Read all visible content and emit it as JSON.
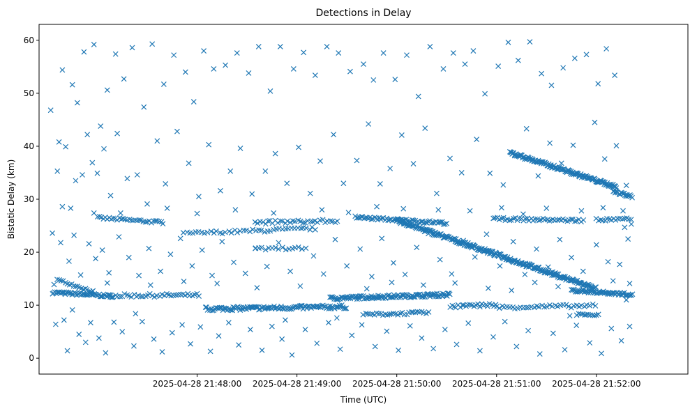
{
  "chart_data": {
    "type": "scatter",
    "title": "Detections in Delay",
    "xlabel": "Time (UTC)",
    "ylabel": "Bistatic Delay (km)",
    "marker": "x",
    "color": "#1f77b4",
    "x_unit": "seconds since 2025-04-28 21:47:00 UTC",
    "xlim": [
      -35,
      355
    ],
    "ylim": [
      -3,
      63
    ],
    "x_ticks": [
      {
        "value": 60,
        "label": "2025-04-28 21:48:00"
      },
      {
        "value": 120,
        "label": "2025-04-28 21:49:00"
      },
      {
        "value": 180,
        "label": "2025-04-28 21:50:00"
      },
      {
        "value": 240,
        "label": "2025-04-28 21:51:00"
      },
      {
        "value": 300,
        "label": "2025-04-28 21:52:00"
      }
    ],
    "y_ticks": [
      0,
      10,
      20,
      30,
      40,
      50,
      60
    ],
    "x_range_seconds": [
      -27,
      347
    ],
    "noise_points": [
      [
        -28,
        46.8
      ],
      [
        -23,
        40.8
      ],
      [
        -21,
        54.4
      ],
      [
        -15,
        51.6
      ],
      [
        -12,
        48.2
      ],
      [
        -8,
        57.8
      ],
      [
        -2,
        59.2
      ],
      [
        2,
        43.8
      ],
      [
        6,
        50.6
      ],
      [
        11,
        57.4
      ],
      [
        16,
        52.7
      ],
      [
        21,
        58.6
      ],
      [
        28,
        47.4
      ],
      [
        33,
        59.3
      ],
      [
        40,
        51.7
      ],
      [
        46,
        57.2
      ],
      [
        53,
        54.0
      ],
      [
        58,
        48.4
      ],
      [
        64,
        58.0
      ],
      [
        70,
        54.6
      ],
      [
        77,
        55.3
      ],
      [
        84,
        57.6
      ],
      [
        91,
        53.8
      ],
      [
        97,
        58.8
      ],
      [
        104,
        50.4
      ],
      [
        110,
        58.8
      ],
      [
        118,
        54.6
      ],
      [
        124,
        57.7
      ],
      [
        131,
        53.4
      ],
      [
        138,
        58.8
      ],
      [
        145,
        57.6
      ],
      [
        152,
        54.1
      ],
      [
        160,
        55.5
      ],
      [
        166,
        52.5
      ],
      [
        172,
        57.6
      ],
      [
        179,
        52.6
      ],
      [
        186,
        57.2
      ],
      [
        193,
        49.4
      ],
      [
        200,
        58.8
      ],
      [
        208,
        54.6
      ],
      [
        214,
        57.6
      ],
      [
        221,
        55.5
      ],
      [
        226,
        58.0
      ],
      [
        233,
        49.9
      ],
      [
        241,
        55.1
      ],
      [
        247,
        59.6
      ],
      [
        253,
        56.2
      ],
      [
        260,
        59.7
      ],
      [
        267,
        53.7
      ],
      [
        273,
        51.5
      ],
      [
        280,
        54.8
      ],
      [
        287,
        56.6
      ],
      [
        294,
        57.3
      ],
      [
        301,
        51.8
      ],
      [
        306,
        58.4
      ],
      [
        311,
        53.4
      ],
      [
        -24,
        35.3
      ],
      [
        -19,
        39.9
      ],
      [
        -16,
        28.3
      ],
      [
        -13,
        33.5
      ],
      [
        -9,
        34.6
      ],
      [
        -6,
        42.2
      ],
      [
        -3,
        36.9
      ],
      [
        0,
        34.9
      ],
      [
        4,
        39.5
      ],
      [
        8,
        30.7
      ],
      [
        12,
        42.4
      ],
      [
        18,
        33.9
      ],
      [
        24,
        34.6
      ],
      [
        30,
        29.1
      ],
      [
        36,
        41.0
      ],
      [
        41,
        32.9
      ],
      [
        48,
        42.8
      ],
      [
        55,
        36.8
      ],
      [
        61,
        30.5
      ],
      [
        67,
        40.3
      ],
      [
        74,
        31.6
      ],
      [
        80,
        35.3
      ],
      [
        86,
        39.6
      ],
      [
        93,
        31.0
      ],
      [
        101,
        35.3
      ],
      [
        107,
        38.6
      ],
      [
        114,
        33.0
      ],
      [
        121,
        39.8
      ],
      [
        128,
        31.1
      ],
      [
        134,
        37.2
      ],
      [
        142,
        42.2
      ],
      [
        148,
        33.0
      ],
      [
        156,
        37.3
      ],
      [
        163,
        44.2
      ],
      [
        170,
        32.9
      ],
      [
        176,
        35.8
      ],
      [
        183,
        42.1
      ],
      [
        190,
        36.7
      ],
      [
        197,
        43.4
      ],
      [
        204,
        31.1
      ],
      [
        212,
        37.7
      ],
      [
        219,
        35.0
      ],
      [
        228,
        41.3
      ],
      [
        236,
        34.9
      ],
      [
        244,
        32.7
      ],
      [
        251,
        38.2
      ],
      [
        258,
        43.3
      ],
      [
        265,
        34.4
      ],
      [
        272,
        40.6
      ],
      [
        279,
        36.8
      ],
      [
        286,
        40.2
      ],
      [
        293,
        34.3
      ],
      [
        299,
        44.5
      ],
      [
        305,
        37.6
      ],
      [
        312,
        40.1
      ],
      [
        318,
        32.6
      ],
      [
        -27,
        23.6
      ],
      [
        -22,
        21.8
      ],
      [
        -17,
        18.3
      ],
      [
        -14,
        23.2
      ],
      [
        -10,
        15.7
      ],
      [
        -5,
        21.6
      ],
      [
        -1,
        18.8
      ],
      [
        3,
        20.4
      ],
      [
        7,
        16.1
      ],
      [
        13,
        22.9
      ],
      [
        19,
        19.0
      ],
      [
        25,
        15.6
      ],
      [
        31,
        20.7
      ],
      [
        38,
        16.4
      ],
      [
        44,
        19.6
      ],
      [
        50,
        22.6
      ],
      [
        57,
        17.4
      ],
      [
        63,
        20.4
      ],
      [
        69,
        15.6
      ],
      [
        75,
        22.0
      ],
      [
        82,
        18.1
      ],
      [
        89,
        16.0
      ],
      [
        95,
        20.7
      ],
      [
        102,
        17.3
      ],
      [
        109,
        21.8
      ],
      [
        116,
        16.4
      ],
      [
        123,
        20.6
      ],
      [
        130,
        19.3
      ],
      [
        136,
        15.9
      ],
      [
        143,
        22.4
      ],
      [
        150,
        17.4
      ],
      [
        158,
        20.6
      ],
      [
        165,
        15.4
      ],
      [
        171,
        22.6
      ],
      [
        178,
        18.0
      ],
      [
        185,
        15.8
      ],
      [
        192,
        20.9
      ],
      [
        199,
        23.5
      ],
      [
        206,
        18.6
      ],
      [
        213,
        15.9
      ],
      [
        220,
        22.2
      ],
      [
        227,
        19.1
      ],
      [
        234,
        23.4
      ],
      [
        242,
        17.4
      ],
      [
        250,
        22.0
      ],
      [
        257,
        15.8
      ],
      [
        264,
        20.6
      ],
      [
        271,
        17.2
      ],
      [
        278,
        22.4
      ],
      [
        285,
        19.0
      ],
      [
        292,
        16.4
      ],
      [
        300,
        21.4
      ],
      [
        307,
        18.2
      ],
      [
        314,
        17.7
      ],
      [
        319,
        22.5
      ],
      [
        -25,
        6.4
      ],
      [
        -20,
        7.2
      ],
      [
        -18,
        1.4
      ],
      [
        -11,
        4.5
      ],
      [
        -7,
        3.0
      ],
      [
        -4,
        6.7
      ],
      [
        1,
        3.8
      ],
      [
        5,
        1.0
      ],
      [
        10,
        6.8
      ],
      [
        15,
        5.0
      ],
      [
        22,
        2.3
      ],
      [
        27,
        6.9
      ],
      [
        34,
        3.6
      ],
      [
        39,
        1.2
      ],
      [
        45,
        4.8
      ],
      [
        51,
        6.3
      ],
      [
        56,
        2.7
      ],
      [
        62,
        5.9
      ],
      [
        68,
        1.3
      ],
      [
        73,
        4.2
      ],
      [
        79,
        6.7
      ],
      [
        85,
        2.5
      ],
      [
        92,
        5.4
      ],
      [
        99,
        1.5
      ],
      [
        105,
        6.0
      ],
      [
        111,
        3.6
      ],
      [
        117,
        0.6
      ],
      [
        125,
        5.4
      ],
      [
        132,
        2.8
      ],
      [
        139,
        6.7
      ],
      [
        146,
        1.7
      ],
      [
        153,
        4.3
      ],
      [
        159,
        6.3
      ],
      [
        167,
        2.2
      ],
      [
        174,
        5.1
      ],
      [
        181,
        1.5
      ],
      [
        188,
        6.1
      ],
      [
        195,
        3.8
      ],
      [
        202,
        1.8
      ],
      [
        209,
        5.4
      ],
      [
        216,
        2.6
      ],
      [
        223,
        6.6
      ],
      [
        230,
        1.4
      ],
      [
        238,
        4.0
      ],
      [
        245,
        6.9
      ],
      [
        252,
        2.2
      ],
      [
        259,
        5.2
      ],
      [
        266,
        0.8
      ],
      [
        274,
        4.7
      ],
      [
        281,
        1.6
      ],
      [
        288,
        6.2
      ],
      [
        296,
        2.9
      ],
      [
        303,
        0.9
      ],
      [
        309,
        5.6
      ],
      [
        315,
        3.3
      ],
      [
        320,
        6.0
      ],
      [
        -26,
        13.9
      ],
      [
        -21,
        28.6
      ],
      [
        -15,
        9.1
      ],
      [
        -8,
        12.9
      ],
      [
        -2,
        27.4
      ],
      [
        6,
        14.2
      ],
      [
        14,
        27.4
      ],
      [
        23,
        8.4
      ],
      [
        32,
        13.8
      ],
      [
        42,
        28.3
      ],
      [
        52,
        14.5
      ],
      [
        60,
        27.3
      ],
      [
        72,
        14.1
      ],
      [
        83,
        28.0
      ],
      [
        96,
        13.3
      ],
      [
        106,
        27.4
      ],
      [
        113,
        7.2
      ],
      [
        122,
        13.6
      ],
      [
        135,
        28.0
      ],
      [
        144,
        7.6
      ],
      [
        151,
        27.5
      ],
      [
        162,
        13.1
      ],
      [
        168,
        28.6
      ],
      [
        177,
        14.3
      ],
      [
        184,
        28.2
      ],
      [
        196,
        13.8
      ],
      [
        205,
        28.0
      ],
      [
        215,
        14.2
      ],
      [
        224,
        27.8
      ],
      [
        235,
        13.2
      ],
      [
        243,
        28.4
      ],
      [
        249,
        12.8
      ],
      [
        256,
        27.2
      ],
      [
        263,
        14.3
      ],
      [
        270,
        28.3
      ],
      [
        277,
        13.5
      ],
      [
        284,
        8.0
      ],
      [
        291,
        27.8
      ],
      [
        297,
        13.6
      ],
      [
        304,
        28.4
      ],
      [
        310,
        14.6
      ],
      [
        316,
        27.8
      ],
      [
        321,
        25.3
      ],
      [
        318,
        11.0
      ],
      [
        317,
        24.7
      ],
      [
        320,
        14.1
      ]
    ],
    "track_segments": [
      {
        "name": "track-a",
        "from": [
          -27,
          12.4
        ],
        "to": [
          10,
          11.7
        ],
        "step": 0.7,
        "jitter": 0.25
      },
      {
        "name": "track-b",
        "from": [
          -24,
          14.8
        ],
        "to": [
          -2,
          12.5
        ],
        "step": 1.2,
        "jitter": 0.2
      },
      {
        "name": "track-c",
        "from": [
          0,
          26.5
        ],
        "to": [
          40,
          25.6
        ],
        "step": 1.2,
        "jitter": 0.25
      },
      {
        "name": "track-d",
        "from": [
          8,
          11.8
        ],
        "to": [
          62,
          11.9
        ],
        "step": 1.4,
        "jitter": 0.3
      },
      {
        "name": "track-e",
        "from": [
          52,
          23.5
        ],
        "to": [
          132,
          24.5
        ],
        "step": 1.8,
        "jitter": 0.3
      },
      {
        "name": "track-f",
        "from": [
          65,
          9.3
        ],
        "to": [
          150,
          9.7
        ],
        "step": 0.7,
        "jitter": 0.35
      },
      {
        "name": "track-g",
        "from": [
          95,
          25.6
        ],
        "to": [
          145,
          25.9
        ],
        "step": 1.5,
        "jitter": 0.3
      },
      {
        "name": "track-h",
        "from": [
          140,
          11.3
        ],
        "to": [
          212,
          12.0
        ],
        "step": 0.6,
        "jitter": 0.3
      },
      {
        "name": "track-i",
        "from": [
          155,
          26.6
        ],
        "to": [
          210,
          25.5
        ],
        "step": 0.9,
        "jitter": 0.25
      },
      {
        "name": "track-j",
        "from": [
          160,
          8.2
        ],
        "to": [
          200,
          8.6
        ],
        "step": 1.3,
        "jitter": 0.25
      },
      {
        "name": "track-k",
        "from": [
          180,
          26.0
        ],
        "to": [
          300,
          13.1
        ],
        "step": 0.45,
        "jitter": 0.35
      },
      {
        "name": "track-l",
        "from": [
          212,
          9.7
        ],
        "to": [
          240,
          10.1
        ],
        "step": 1.2,
        "jitter": 0.3
      },
      {
        "name": "track-m",
        "from": [
          238,
          26.3
        ],
        "to": [
          292,
          26.0
        ],
        "step": 1.2,
        "jitter": 0.25
      },
      {
        "name": "track-n",
        "from": [
          240,
          9.6
        ],
        "to": [
          300,
          9.9
        ],
        "step": 1.6,
        "jitter": 0.3
      },
      {
        "name": "track-o",
        "from": [
          248,
          38.8
        ],
        "to": [
          312,
          32.3
        ],
        "step": 0.45,
        "jitter": 0.3
      },
      {
        "name": "track-p",
        "from": [
          285,
          12.8
        ],
        "to": [
          322,
          12.0
        ],
        "step": 0.6,
        "jitter": 0.25
      },
      {
        "name": "track-q",
        "from": [
          300,
          26.1
        ],
        "to": [
          322,
          26.2
        ],
        "step": 1.3,
        "jitter": 0.3
      },
      {
        "name": "track-r",
        "from": [
          310,
          31.5
        ],
        "to": [
          322,
          30.4
        ],
        "step": 0.6,
        "jitter": 0.25
      },
      {
        "name": "track-s",
        "from": [
          288,
          8.3
        ],
        "to": [
          302,
          8.1
        ],
        "step": 1.2,
        "jitter": 0.2
      },
      {
        "name": "track-t",
        "from": [
          95,
          20.6
        ],
        "to": [
          125,
          20.8
        ],
        "step": 2.0,
        "jitter": 0.25
      }
    ]
  }
}
